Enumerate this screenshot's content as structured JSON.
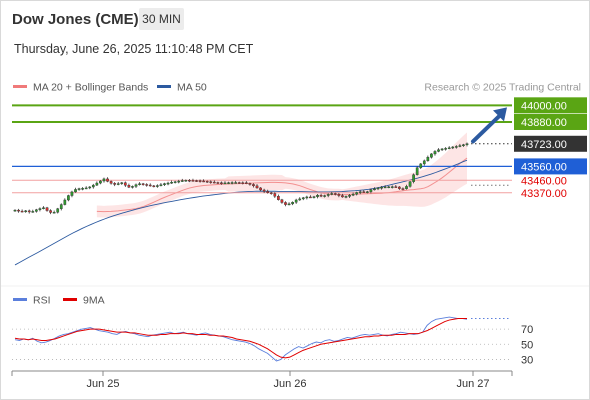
{
  "header": {
    "symbol": "Dow Jones (CME)",
    "timeframe": "30 MIN",
    "datetime": "Thursday, June 26, 2025 11:10:48 PM CET"
  },
  "colors": {
    "resistance": "#5aa514",
    "support": "#e00000",
    "pivot": "#1f5fd6",
    "current": "#333333",
    "arrow": "#2c5aa0",
    "bollinger": "#f07a7a",
    "ma50": "#2c5aa0",
    "rsi": "#5b7fdc",
    "rsi_ma": "#e00000"
  },
  "chart_data": [
    {
      "type": "candlestick",
      "legend": [
        {
          "label": "MA 20 + Bollinger Bands",
          "color": "#f07a7a"
        },
        {
          "label": "MA 50",
          "color": "#2c5aa0"
        }
      ],
      "watermark": "Research © 2025 Trading Central",
      "x_ticks": [
        "Jun 25",
        "Jun 26",
        "Jun 27"
      ],
      "ylim": [
        42720,
        44060
      ],
      "levels": [
        {
          "value": 44000.0,
          "label": "44000.00",
          "kind": "resistance"
        },
        {
          "value": 43880.0,
          "label": "43880.00",
          "kind": "resistance"
        },
        {
          "value": 43723.0,
          "label": "43723.00",
          "kind": "current"
        },
        {
          "value": 43560.0,
          "label": "43560.00",
          "kind": "pivot"
        },
        {
          "value": 43460.0,
          "label": "43460.00",
          "kind": "support"
        },
        {
          "value": 43370.0,
          "label": "43370.00",
          "kind": "support"
        }
      ],
      "close": [
        43245,
        43238,
        43235,
        43240,
        43232,
        43236,
        43248,
        43256,
        43262,
        43242,
        43228,
        43230,
        43255,
        43285,
        43318,
        43350,
        43376,
        43394,
        43400,
        43402,
        43405,
        43412,
        43425,
        43440,
        43455,
        43470,
        43452,
        43438,
        43430,
        43436,
        43442,
        43424,
        43410,
        43416,
        43428,
        43435,
        43430,
        43426,
        43420,
        43418,
        43422,
        43428,
        43436,
        43440,
        43446,
        43450,
        43454,
        43458,
        43460,
        43459,
        43458,
        43457,
        43455,
        43453,
        43450,
        43447,
        43444,
        43442,
        43440,
        43441,
        43443,
        43444,
        43444,
        43443,
        43442,
        43438,
        43430,
        43420,
        43405,
        43390,
        43380,
        43370,
        43365,
        43345,
        43320,
        43300,
        43285,
        43290,
        43302,
        43318,
        43326,
        43334,
        43340,
        43338,
        43342,
        43352,
        43345,
        43350,
        43358,
        43365,
        43360,
        43350,
        43340,
        43344,
        43352,
        43360,
        43372,
        43378,
        43375,
        43378,
        43392,
        43398,
        43405,
        43410,
        43412,
        43413,
        43414,
        43412,
        43400,
        43399,
        43416,
        43450,
        43500,
        43550,
        43578,
        43600,
        43626,
        43650,
        43668,
        43680,
        43686,
        43690,
        43694,
        43700,
        43704,
        43710,
        43716,
        43723
      ],
      "ma20": [
        43236,
        43235,
        43234,
        43235,
        43236,
        43238,
        43240,
        43243,
        43246,
        43249,
        43252,
        43256,
        43262,
        43270,
        43280,
        43291,
        43302,
        43314,
        43326,
        43337,
        43347,
        43357,
        43367,
        43377,
        43387,
        43396,
        43404,
        43410,
        43415,
        43419,
        43422,
        43424,
        43426,
        43428,
        43430,
        43431,
        43432,
        43433,
        43434,
        43435,
        43436,
        43437,
        43438,
        43439,
        43440,
        43441,
        43442,
        43443,
        43444,
        43445,
        43445,
        43444,
        43443,
        43441,
        43438,
        43434,
        43428,
        43421,
        43412,
        43402,
        43393,
        43385,
        43377,
        43370,
        43364,
        43360,
        43358,
        43357,
        43357,
        43357,
        43357,
        43358,
        43359,
        43360,
        43361,
        43362,
        43363,
        43364,
        43365,
        43366,
        43367,
        43369,
        43371,
        43374,
        43377,
        43381,
        43385,
        43388,
        43391,
        43393,
        43396,
        43399,
        43404,
        43414,
        43428,
        43444,
        43460,
        43478,
        43497,
        43518,
        43539,
        43560,
        43581,
        43601,
        43620
      ],
      "ma50": [
        42850,
        42868,
        42886,
        42904,
        42921,
        42938,
        42956,
        42974,
        42992,
        43010,
        43028,
        43046,
        43064,
        43081,
        43097,
        43113,
        43128,
        43142,
        43156,
        43169,
        43181,
        43193,
        43204,
        43214,
        43224,
        43233,
        43242,
        43251,
        43259,
        43267,
        43275,
        43282,
        43289,
        43296,
        43302,
        43308,
        43314,
        43320,
        43326,
        43331,
        43336,
        43341,
        43346,
        43350,
        43354,
        43358,
        43362,
        43366,
        43369,
        43372,
        43375,
        43377,
        43379,
        43380,
        43381,
        43381,
        43381,
        43381,
        43381,
        43380,
        43380,
        43380,
        43380,
        43379,
        43379,
        43378,
        43377,
        43376,
        43376,
        43376,
        43376,
        43377,
        43378,
        43379,
        43381,
        43383,
        43385,
        43388,
        43391,
        43395,
        43400,
        43406,
        43413,
        43420,
        43428,
        43436,
        43444,
        43452,
        43460,
        43468,
        43476,
        43485,
        43495,
        43505,
        43516,
        43528,
        43540,
        43552,
        43565,
        43578,
        43592,
        43605
      ]
    },
    {
      "type": "line",
      "legend": [
        {
          "label": "RSI",
          "color": "#5b7fdc"
        },
        {
          "label": "9MA",
          "color": "#e00000"
        }
      ],
      "ylim": [
        20,
        90
      ],
      "y_ticks": [
        70,
        50,
        30
      ],
      "series": [
        {
          "name": "RSI",
          "values": [
            56,
            55,
            57,
            56,
            58,
            54,
            52,
            53,
            55,
            58,
            61,
            63,
            64,
            66,
            68,
            70,
            71,
            72,
            70,
            68,
            67,
            66,
            64,
            63,
            66,
            67,
            65,
            64,
            62,
            61,
            60,
            62,
            63,
            64,
            65,
            66,
            64,
            65,
            66,
            64,
            63,
            62,
            64,
            65,
            63,
            62,
            61,
            60,
            58,
            56,
            55,
            54,
            53,
            51,
            48,
            44,
            41,
            38,
            33,
            28,
            30,
            36,
            40,
            44,
            47,
            45,
            48,
            51,
            53,
            52,
            55,
            56,
            54,
            55,
            57,
            59,
            58,
            60,
            62,
            63,
            62,
            63,
            64,
            62,
            61,
            63,
            64,
            66,
            65,
            64,
            63,
            64,
            66,
            75,
            80,
            83,
            84,
            85,
            86,
            85,
            84,
            84,
            83
          ]
        },
        {
          "name": "9MA",
          "values": [
            58,
            57,
            57,
            56,
            57,
            56,
            55,
            55,
            56,
            57,
            59,
            61,
            63,
            65,
            67,
            68,
            69,
            70,
            70,
            70,
            69,
            68,
            67,
            66,
            66,
            66,
            65,
            65,
            64,
            63,
            62,
            62,
            62,
            63,
            63,
            64,
            64,
            64,
            65,
            64,
            64,
            63,
            63,
            63,
            62,
            62,
            61,
            61,
            60,
            59,
            57,
            56,
            55,
            54,
            52,
            50,
            47,
            44,
            40,
            36,
            33,
            32,
            33,
            36,
            39,
            42,
            44,
            46,
            48,
            50,
            51,
            52,
            53,
            54,
            55,
            56,
            57,
            58,
            59,
            60,
            60,
            61,
            61,
            62,
            62,
            62,
            63,
            63,
            63,
            64,
            64,
            64,
            66,
            68,
            71,
            74,
            77,
            80,
            82,
            83,
            84,
            84,
            84
          ]
        }
      ]
    }
  ]
}
